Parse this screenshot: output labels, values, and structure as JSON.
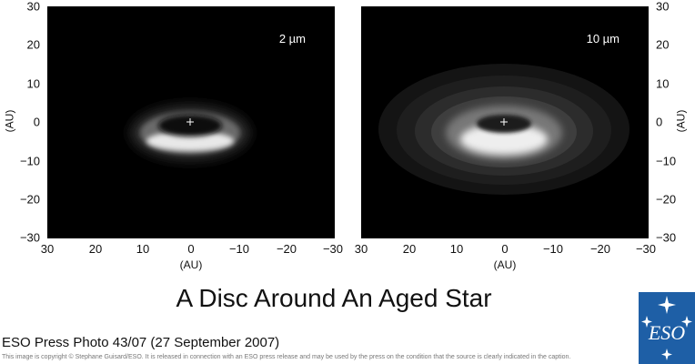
{
  "panels": [
    {
      "band_label": "2 µm",
      "x_axis_label": "(AU)",
      "y_axis_label": "(AU)"
    },
    {
      "band_label": "10 µm",
      "x_axis_label": "(AU)",
      "y_axis_label": "(AU)"
    }
  ],
  "axes": {
    "x_ticks": [
      "30",
      "20",
      "10",
      "0",
      "−10",
      "−20",
      "−30"
    ],
    "y_ticks": [
      "30",
      "20",
      "10",
      "0",
      "−10",
      "−20",
      "−30"
    ],
    "x_range": [
      30,
      -30
    ],
    "y_range": [
      -30,
      30
    ]
  },
  "title": "A Disc Around An Aged Star",
  "caption": "ESO Press Photo 43/07  (27 September 2007)",
  "copyright": "This image is copyright © Stephane Guisard/ESO. It is released in connection with an ESO press release and may be used by the press on the condition that the source is clearly indicated in the caption.",
  "logo": {
    "text": "ESO",
    "color": "#1e5fa6"
  },
  "colors": {
    "panel_background": "#000000",
    "disc_glow": "#ffffff"
  }
}
